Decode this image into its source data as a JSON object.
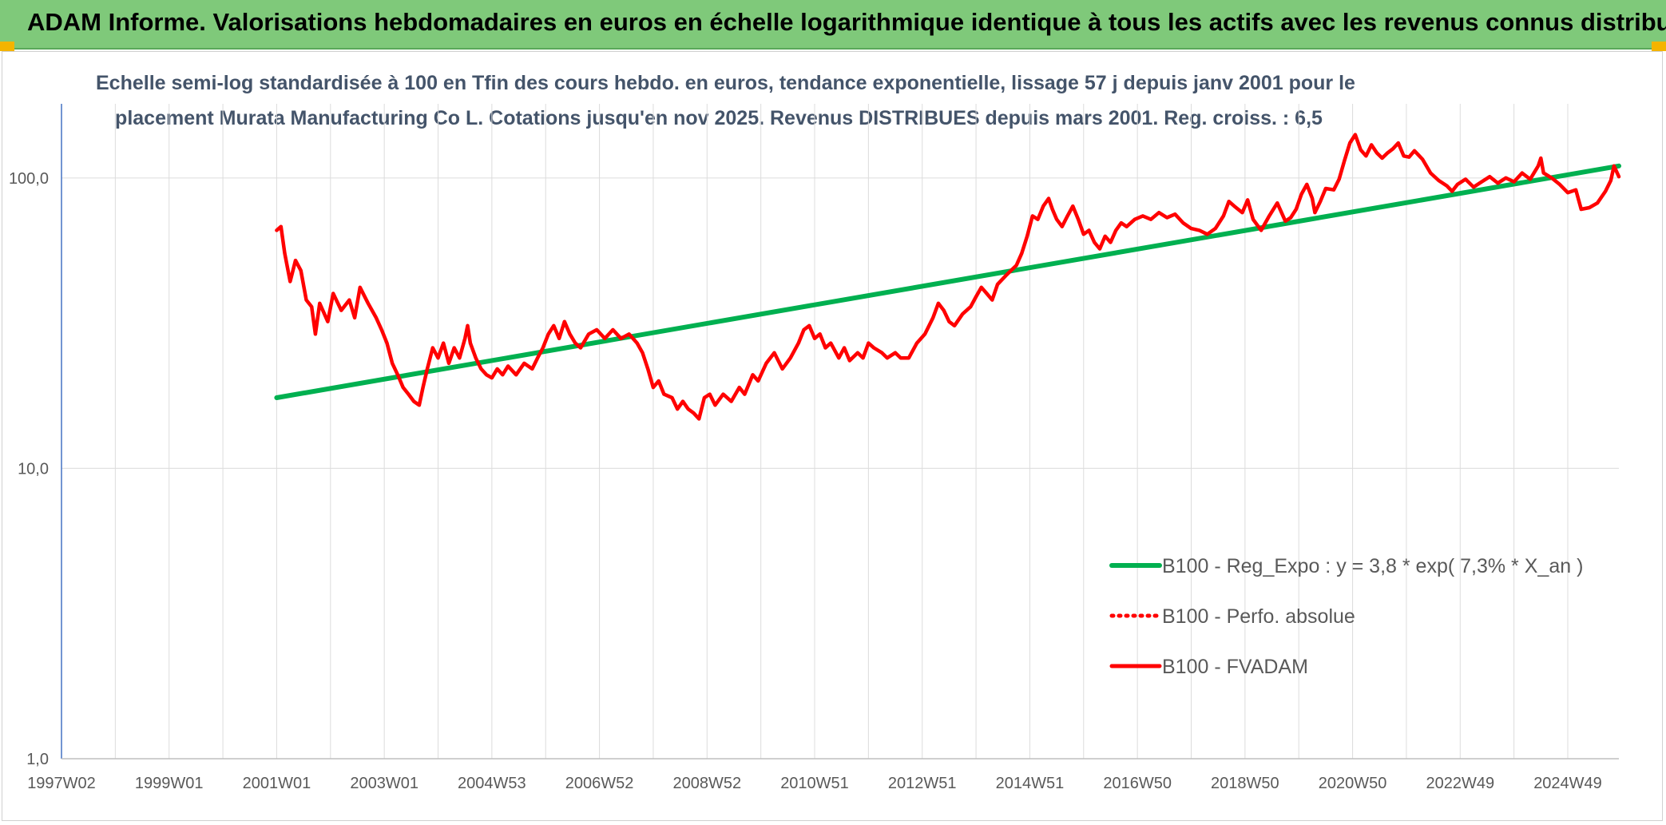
{
  "header": {
    "title": "ADAM Informe. Valorisations hebdomadaires en euros en échelle logarithmique identique à tous les actifs avec les revenus connus distribués"
  },
  "chart_data": {
    "type": "line",
    "title_line1": "Echelle semi-log standardisée à 100 en Tfin des cours hebdo. en euros, tendance exponentielle, lissage 57 j depuis janv 2001 pour le",
    "title_line2": "placement Murata Manufacturing Co L. Cotations jusqu'en nov 2025. Revenus DISTRIBUES depuis mars 2001. Reg. croiss. : 6,5",
    "xlabel": "",
    "ylabel": "",
    "y_scale": "log",
    "ylim": [
      1,
      180
    ],
    "xlim": [
      1997.0,
      2025.95
    ],
    "grid": true,
    "legend_position": "bottom-right",
    "y_ticks": [
      {
        "value": 1,
        "label": "1,0"
      },
      {
        "value": 10,
        "label": "10,0"
      },
      {
        "value": 100,
        "label": "100,0"
      }
    ],
    "x_ticks": [
      {
        "x": 1997.0,
        "label": "1997W02"
      },
      {
        "x": 1999.0,
        "label": "1999W01"
      },
      {
        "x": 2001.0,
        "label": "2001W01"
      },
      {
        "x": 2003.0,
        "label": "2003W01"
      },
      {
        "x": 2005.0,
        "label": "2004W53"
      },
      {
        "x": 2007.0,
        "label": "2006W52"
      },
      {
        "x": 2009.0,
        "label": "2008W52"
      },
      {
        "x": 2011.0,
        "label": "2010W51"
      },
      {
        "x": 2013.0,
        "label": "2012W51"
      },
      {
        "x": 2015.0,
        "label": "2014W51"
      },
      {
        "x": 2017.0,
        "label": "2016W50"
      },
      {
        "x": 2019.0,
        "label": "2018W50"
      },
      {
        "x": 2021.0,
        "label": "2020W50"
      },
      {
        "x": 2023.0,
        "label": "2022W49"
      },
      {
        "x": 2025.0,
        "label": "2024W49"
      }
    ],
    "series": [
      {
        "name": "B100 - Reg_Expo : y = 3,8 * exp( 7,3% *  X_an )",
        "color": "#00b050",
        "style": "solid",
        "points": [
          [
            2001.0,
            17.5
          ],
          [
            2025.95,
            110
          ]
        ]
      },
      {
        "name": "B100 - Perfo. absolue",
        "color": "#ff0000",
        "style": "dotted",
        "points": []
      },
      {
        "name": "B100 - FVADAM",
        "color": "#ff0000",
        "style": "solid",
        "points": [
          [
            2001.0,
            66
          ],
          [
            2001.08,
            68
          ],
          [
            2001.15,
            55
          ],
          [
            2001.25,
            44
          ],
          [
            2001.35,
            52
          ],
          [
            2001.45,
            48
          ],
          [
            2001.55,
            38
          ],
          [
            2001.65,
            36
          ],
          [
            2001.72,
            29
          ],
          [
            2001.8,
            37
          ],
          [
            2001.95,
            32
          ],
          [
            2002.05,
            40
          ],
          [
            2002.2,
            35
          ],
          [
            2002.35,
            38
          ],
          [
            2002.45,
            33
          ],
          [
            2002.55,
            42
          ],
          [
            2002.7,
            37
          ],
          [
            2002.85,
            33
          ],
          [
            2002.95,
            30
          ],
          [
            2003.05,
            27
          ],
          [
            2003.15,
            23
          ],
          [
            2003.25,
            21
          ],
          [
            2003.35,
            19
          ],
          [
            2003.45,
            18
          ],
          [
            2003.55,
            17
          ],
          [
            2003.65,
            16.5
          ],
          [
            2003.72,
            19
          ],
          [
            2003.8,
            22
          ],
          [
            2003.9,
            26
          ],
          [
            2004.0,
            24
          ],
          [
            2004.1,
            27
          ],
          [
            2004.2,
            23
          ],
          [
            2004.3,
            26
          ],
          [
            2004.4,
            24
          ],
          [
            2004.5,
            28
          ],
          [
            2004.55,
            31
          ],
          [
            2004.6,
            27
          ],
          [
            2004.7,
            24
          ],
          [
            2004.8,
            22
          ],
          [
            2004.9,
            21
          ],
          [
            2005.0,
            20.5
          ],
          [
            2005.1,
            22
          ],
          [
            2005.2,
            21
          ],
          [
            2005.3,
            22.5
          ],
          [
            2005.45,
            21
          ],
          [
            2005.6,
            23
          ],
          [
            2005.75,
            22
          ],
          [
            2005.85,
            24
          ],
          [
            2005.95,
            26
          ],
          [
            2006.05,
            29
          ],
          [
            2006.15,
            31
          ],
          [
            2006.25,
            28
          ],
          [
            2006.35,
            32
          ],
          [
            2006.45,
            29
          ],
          [
            2006.55,
            27
          ],
          [
            2006.65,
            26
          ],
          [
            2006.8,
            29
          ],
          [
            2006.95,
            30
          ],
          [
            2007.1,
            28
          ],
          [
            2007.25,
            30
          ],
          [
            2007.4,
            28
          ],
          [
            2007.55,
            29
          ],
          [
            2007.7,
            27
          ],
          [
            2007.8,
            25
          ],
          [
            2007.9,
            22
          ],
          [
            2008.0,
            19
          ],
          [
            2008.1,
            20
          ],
          [
            2008.2,
            18
          ],
          [
            2008.35,
            17.5
          ],
          [
            2008.45,
            16
          ],
          [
            2008.55,
            17
          ],
          [
            2008.65,
            16
          ],
          [
            2008.75,
            15.5
          ],
          [
            2008.85,
            14.8
          ],
          [
            2008.95,
            17.5
          ],
          [
            2009.05,
            18
          ],
          [
            2009.15,
            16.5
          ],
          [
            2009.3,
            18
          ],
          [
            2009.45,
            17
          ],
          [
            2009.6,
            19
          ],
          [
            2009.7,
            18
          ],
          [
            2009.85,
            21
          ],
          [
            2009.95,
            20
          ],
          [
            2010.1,
            23
          ],
          [
            2010.25,
            25
          ],
          [
            2010.4,
            22
          ],
          [
            2010.55,
            24
          ],
          [
            2010.7,
            27
          ],
          [
            2010.8,
            30
          ],
          [
            2010.9,
            31
          ],
          [
            2011.0,
            28
          ],
          [
            2011.1,
            29
          ],
          [
            2011.2,
            26
          ],
          [
            2011.3,
            27
          ],
          [
            2011.45,
            24
          ],
          [
            2011.55,
            26
          ],
          [
            2011.65,
            23.5
          ],
          [
            2011.8,
            25
          ],
          [
            2011.9,
            24
          ],
          [
            2012.0,
            27
          ],
          [
            2012.1,
            26
          ],
          [
            2012.25,
            25
          ],
          [
            2012.35,
            24
          ],
          [
            2012.5,
            25
          ],
          [
            2012.6,
            24
          ],
          [
            2012.75,
            24
          ],
          [
            2012.9,
            27
          ],
          [
            2013.05,
            29
          ],
          [
            2013.2,
            33
          ],
          [
            2013.3,
            37
          ],
          [
            2013.4,
            35
          ],
          [
            2013.5,
            32
          ],
          [
            2013.6,
            31
          ],
          [
            2013.75,
            34
          ],
          [
            2013.9,
            36
          ],
          [
            2014.0,
            39
          ],
          [
            2014.1,
            42
          ],
          [
            2014.2,
            40
          ],
          [
            2014.3,
            38
          ],
          [
            2014.4,
            43
          ],
          [
            2014.55,
            46
          ],
          [
            2014.65,
            48
          ],
          [
            2014.75,
            50
          ],
          [
            2014.85,
            55
          ],
          [
            2014.95,
            63
          ],
          [
            2015.05,
            74
          ],
          [
            2015.15,
            72
          ],
          [
            2015.25,
            80
          ],
          [
            2015.35,
            85
          ],
          [
            2015.42,
            78
          ],
          [
            2015.5,
            72
          ],
          [
            2015.6,
            68
          ],
          [
            2015.7,
            74
          ],
          [
            2015.8,
            80
          ],
          [
            2015.9,
            72
          ],
          [
            2016.0,
            64
          ],
          [
            2016.1,
            66
          ],
          [
            2016.2,
            60
          ],
          [
            2016.3,
            57
          ],
          [
            2016.4,
            63
          ],
          [
            2016.5,
            60
          ],
          [
            2016.6,
            66
          ],
          [
            2016.7,
            70
          ],
          [
            2016.8,
            68
          ],
          [
            2016.95,
            72
          ],
          [
            2017.1,
            74
          ],
          [
            2017.25,
            72
          ],
          [
            2017.4,
            76
          ],
          [
            2017.55,
            73
          ],
          [
            2017.7,
            75
          ],
          [
            2017.85,
            70
          ],
          [
            2018.0,
            67
          ],
          [
            2018.15,
            66
          ],
          [
            2018.3,
            64
          ],
          [
            2018.45,
            67
          ],
          [
            2018.6,
            74
          ],
          [
            2018.7,
            83
          ],
          [
            2018.8,
            80
          ],
          [
            2018.95,
            76
          ],
          [
            2019.05,
            84
          ],
          [
            2019.15,
            72
          ],
          [
            2019.3,
            66
          ],
          [
            2019.45,
            74
          ],
          [
            2019.6,
            82
          ],
          [
            2019.75,
            71
          ],
          [
            2019.85,
            73
          ],
          [
            2019.95,
            78
          ],
          [
            2020.05,
            88
          ],
          [
            2020.15,
            95
          ],
          [
            2020.25,
            85
          ],
          [
            2020.3,
            76
          ],
          [
            2020.4,
            83
          ],
          [
            2020.5,
            92
          ],
          [
            2020.65,
            91
          ],
          [
            2020.75,
            99
          ],
          [
            2020.85,
            115
          ],
          [
            2020.95,
            132
          ],
          [
            2021.05,
            141
          ],
          [
            2021.15,
            125
          ],
          [
            2021.25,
            119
          ],
          [
            2021.35,
            130
          ],
          [
            2021.45,
            122
          ],
          [
            2021.55,
            117
          ],
          [
            2021.65,
            122
          ],
          [
            2021.75,
            126
          ],
          [
            2021.85,
            132
          ],
          [
            2021.95,
            119
          ],
          [
            2022.05,
            118
          ],
          [
            2022.15,
            124
          ],
          [
            2022.3,
            116
          ],
          [
            2022.45,
            104
          ],
          [
            2022.6,
            98
          ],
          [
            2022.75,
            94
          ],
          [
            2022.85,
            90
          ],
          [
            2022.95,
            95
          ],
          [
            2023.1,
            99
          ],
          [
            2023.25,
            93
          ],
          [
            2023.4,
            97
          ],
          [
            2023.55,
            101
          ],
          [
            2023.7,
            96
          ],
          [
            2023.85,
            100
          ],
          [
            2024.0,
            97
          ],
          [
            2024.15,
            104
          ],
          [
            2024.3,
            99
          ],
          [
            2024.45,
            110
          ],
          [
            2024.5,
            117
          ],
          [
            2024.55,
            104
          ],
          [
            2024.7,
            100
          ],
          [
            2024.85,
            95
          ],
          [
            2025.0,
            89
          ],
          [
            2025.15,
            91
          ],
          [
            2025.25,
            78
          ],
          [
            2025.4,
            79
          ],
          [
            2025.55,
            82
          ],
          [
            2025.7,
            90
          ],
          [
            2025.8,
            98
          ],
          [
            2025.86,
            110
          ],
          [
            2025.95,
            101
          ]
        ]
      }
    ]
  }
}
